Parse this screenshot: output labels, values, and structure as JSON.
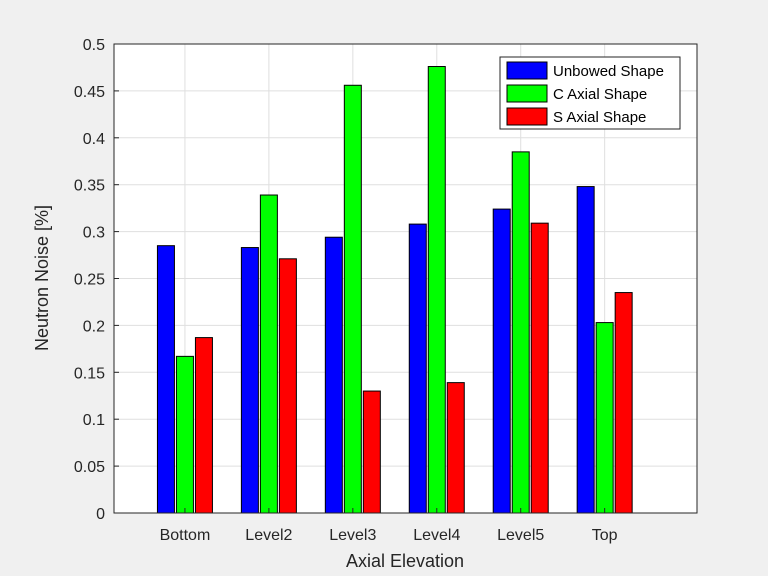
{
  "chart_data": {
    "type": "bar",
    "title": "",
    "xlabel": "Axial Elevation",
    "ylabel": "Neutron Noise [%]",
    "categories": [
      "Bottom",
      "Level2",
      "Level3",
      "Level4",
      "Level5",
      "Top"
    ],
    "series": [
      {
        "name": "Unbowed Shape",
        "color": "#0000ff",
        "values": [
          0.285,
          0.283,
          0.294,
          0.308,
          0.324,
          0.348
        ]
      },
      {
        "name": "C Axial Shape",
        "color": "#00ff00",
        "values": [
          0.167,
          0.339,
          0.456,
          0.476,
          0.385,
          0.203
        ]
      },
      {
        "name": "S Axial Shape",
        "color": "#ff0000",
        "values": [
          0.187,
          0.271,
          0.13,
          0.139,
          0.309,
          0.235
        ]
      }
    ],
    "ylim": [
      0,
      0.5
    ],
    "yticks": [
      "0",
      "0.05",
      "0.1",
      "0.15",
      "0.2",
      "0.25",
      "0.3",
      "0.35",
      "0.4",
      "0.45",
      "0.5"
    ],
    "grid": true,
    "legend_position": "top-right"
  }
}
